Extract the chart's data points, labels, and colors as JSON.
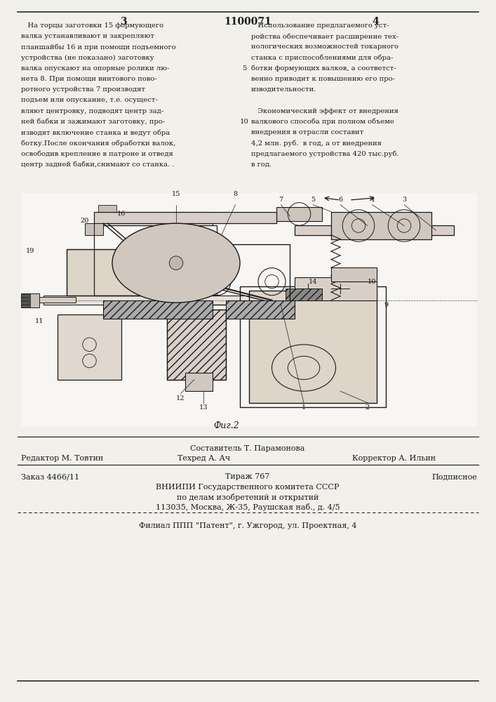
{
  "page_number_left": "3",
  "page_number_center": "1100071",
  "page_number_right": "4",
  "col_left_text": [
    "   На торцы заготовки 15 формующего",
    "валка устанавливают и закрепляют",
    "планшайбы 16 и при помощи подъемного",
    "устройства (не показано) заготовку",
    "валка опускают на опорные ролики лю-",
    "нета 8. При помощи винтового пово-",
    "ротного устройства 7 производят",
    "подъем или опускание, т.е. осущест-",
    "вляют центровку, подводят центр зад-",
    "ней бабки и зажимают заготовку, про-",
    "изводят включение станка и ведут обра",
    "ботку.После окончания обработки валок,",
    "освободив крепление в патроне и отведя",
    "центр задней бабки,снимают со станка. ."
  ],
  "col_right_text": [
    "   Использование предлагаемого уст-",
    "ройства обеспечивает расширение тех-",
    "нологических возможностей токарного",
    "станка с приспособлениями для обра-",
    "ботки формующих валков, а соответст-",
    "венно приводит к повышению его про-",
    "изводительности.",
    "",
    "   Экономический эффект от внедрения",
    "валкового способа при полном объеме",
    "внедрения в отрасли составит",
    "4,2 млн. руб.  в год, а от внедрения",
    "предлагаемого устройства 420 тыс.руб.",
    "в год."
  ],
  "line_number_5": "5",
  "line_number_10": "10",
  "fig_caption": "Фиг.2",
  "composer_row": "Составитель Т. Парамонова",
  "editor_label": "Редактор М. Товтин",
  "techred_label": "Техред А. Ач",
  "corrector_label": "Корректор А. Ильин",
  "order_label": "Заказ 4466/11",
  "tirage_label": "Тираж 767",
  "subscription_label": "Подписное",
  "vniip_line1": "ВНИИПИ Государственного комитета СССР",
  "vniip_line2": "по делам изобретений и открытий",
  "vniip_line3": "113035, Москва, Ж-35, Раушская наб., д. 4/5",
  "filial_line": "Филиал ППП \"Патент\", г. Ужгород, ул. Проектная, 4",
  "bg_color": "#f2f0eb",
  "text_color": "#1a1a1a",
  "line_color": "#2a2a2a",
  "draw_color": "#1a1a1a"
}
